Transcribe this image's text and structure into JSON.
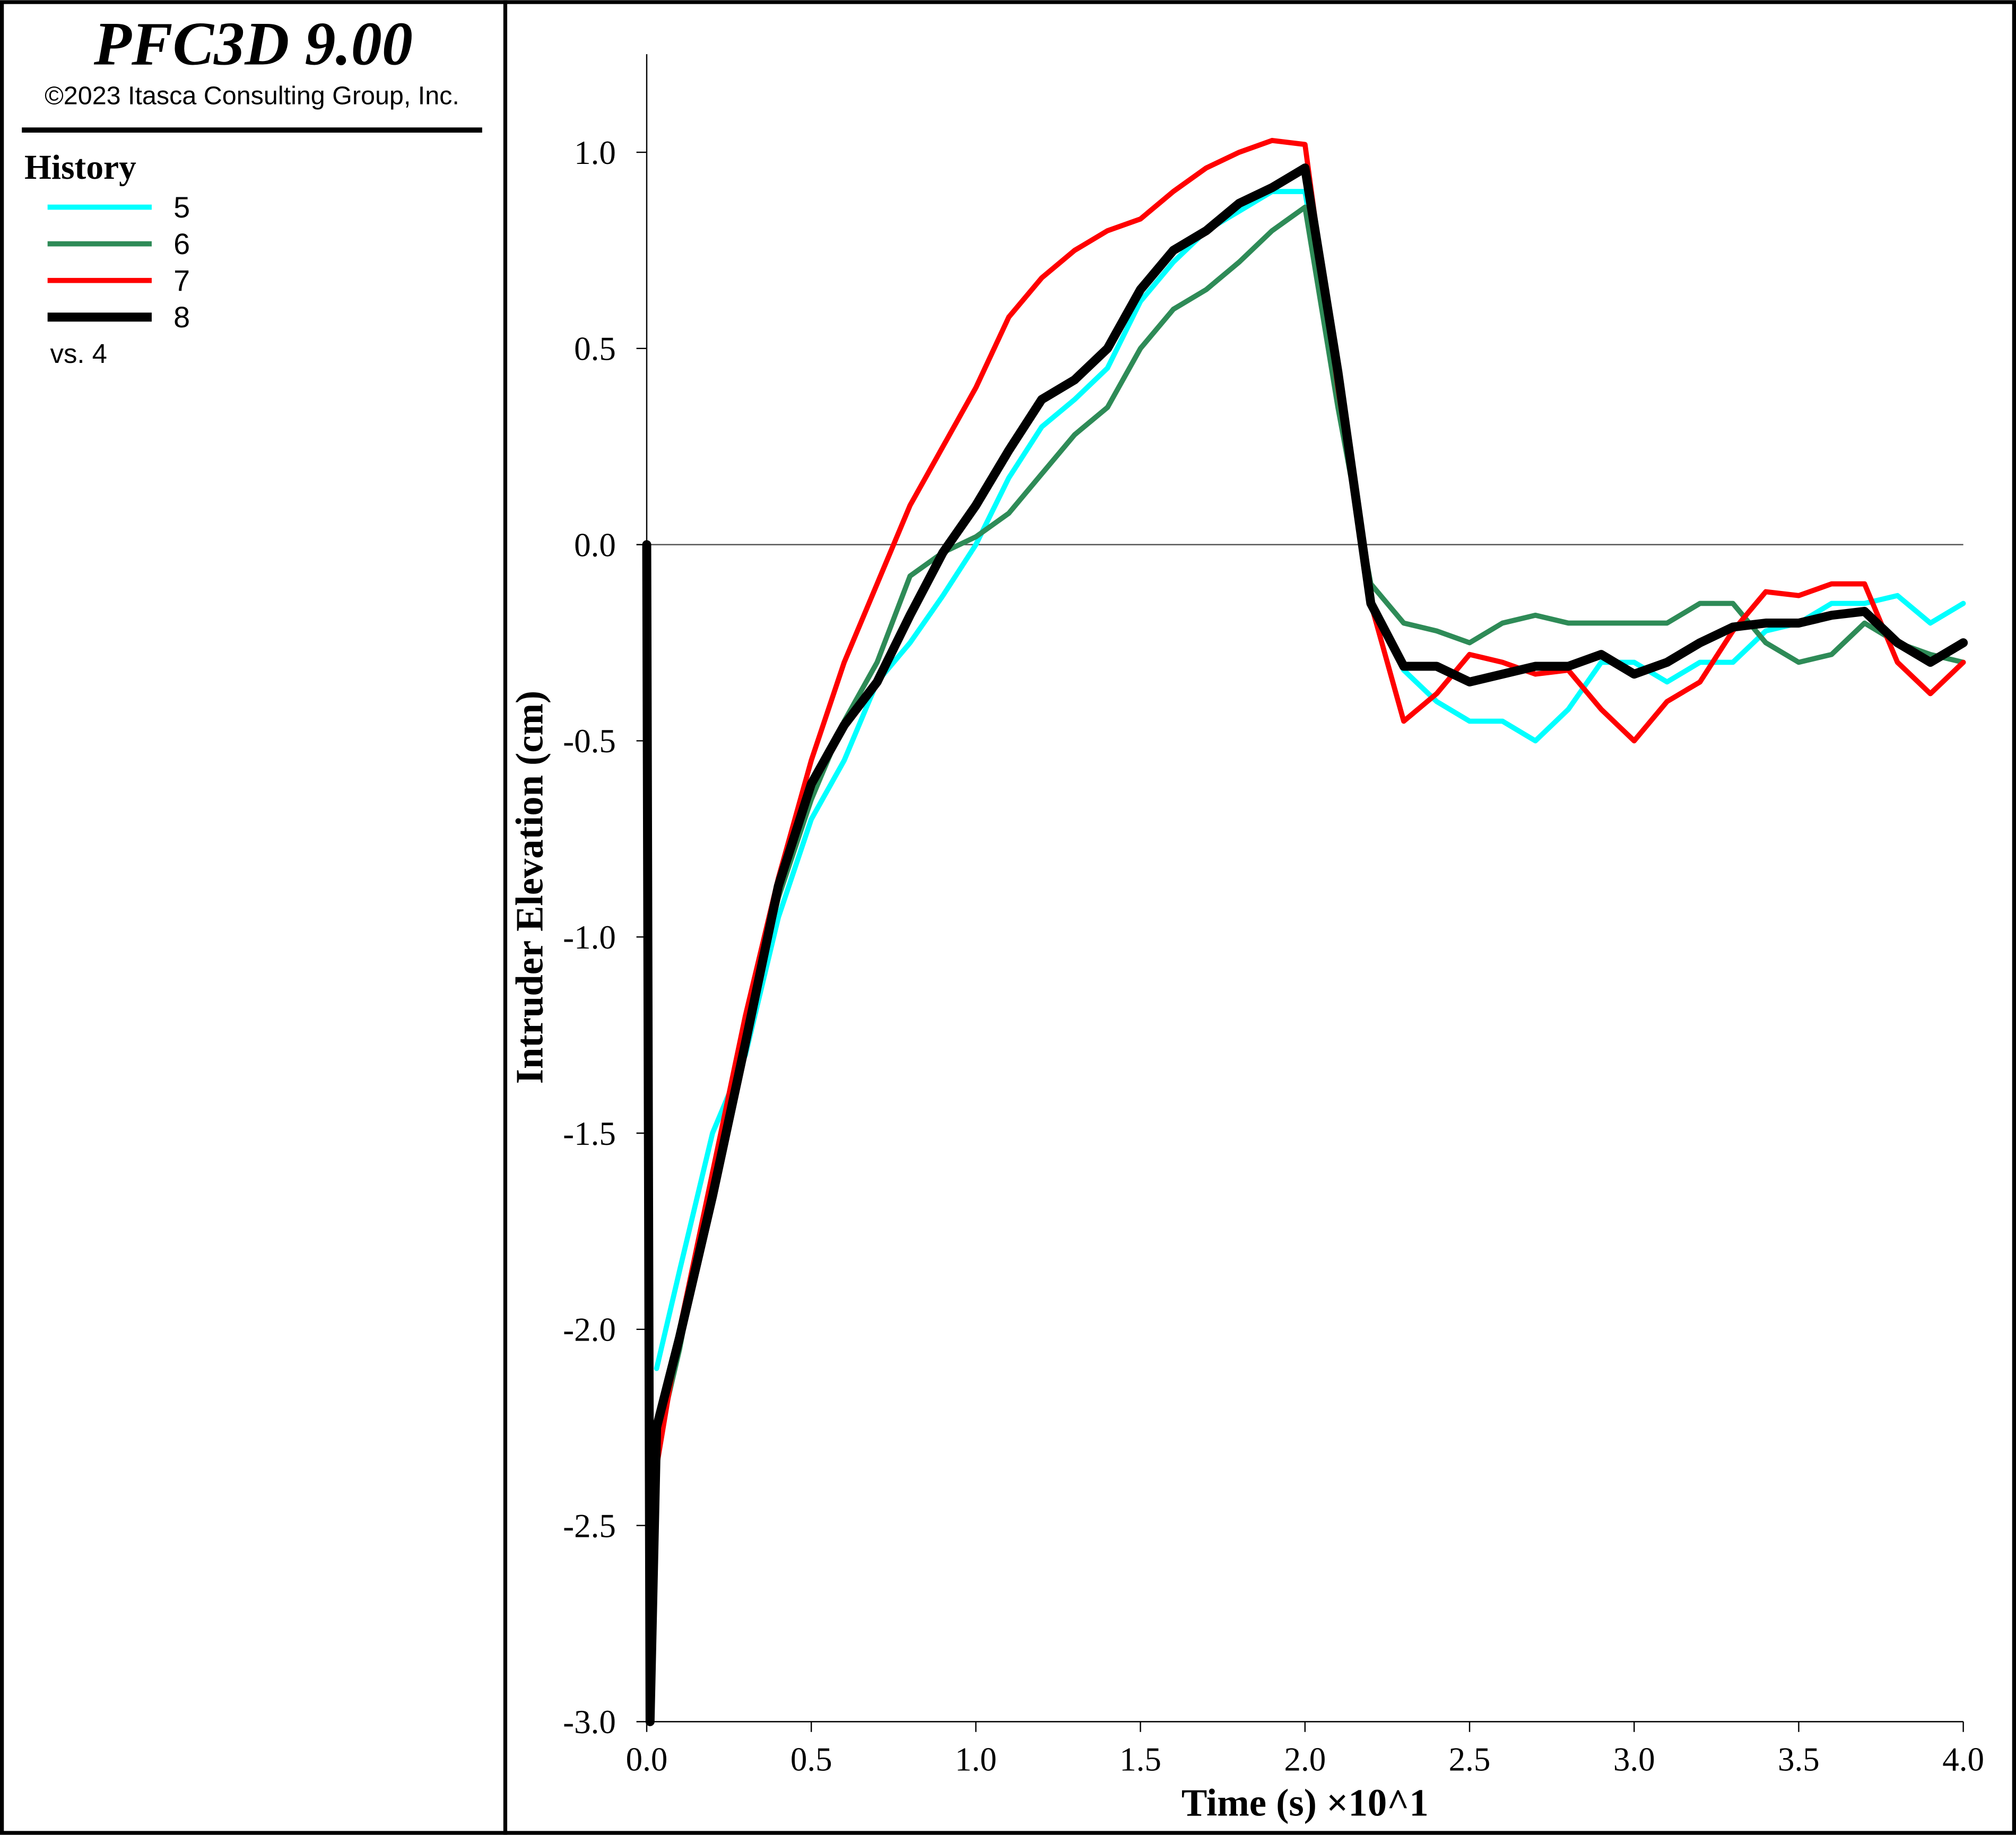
{
  "header": {
    "title": "PFC3D 9.00",
    "copyright": "©2023 Itasca Consulting Group, Inc.",
    "legend_title": "History",
    "versus": "vs. 4"
  },
  "chart_data": {
    "type": "line",
    "x_label": "Time (s) ×10^1",
    "y_label": "Intruder Elevation (cm)",
    "xlim": [
      0,
      4
    ],
    "ylim": [
      -3,
      1.25
    ],
    "xticks": [
      {
        "value": 0,
        "label": "0.0"
      },
      {
        "value": 0.5,
        "label": "0.5"
      },
      {
        "value": 1,
        "label": "1.0"
      },
      {
        "value": 1.5,
        "label": "1.5"
      },
      {
        "value": 2,
        "label": "2.0"
      },
      {
        "value": 2.5,
        "label": "2.5"
      },
      {
        "value": 3,
        "label": "3.0"
      },
      {
        "value": 3.5,
        "label": "3.5"
      },
      {
        "value": 4,
        "label": "4.0"
      }
    ],
    "yticks": [
      {
        "value": -3,
        "label": "-3.0"
      },
      {
        "value": -2.5,
        "label": "-2.5"
      },
      {
        "value": -2,
        "label": "-2.0"
      },
      {
        "value": -1.5,
        "label": "-1.5"
      },
      {
        "value": -1,
        "label": "-1.0"
      },
      {
        "value": -0.5,
        "label": "-0.5"
      },
      {
        "value": 0,
        "label": "0.0"
      },
      {
        "value": 0.5,
        "label": "0.5"
      },
      {
        "value": 1,
        "label": "1.0"
      }
    ],
    "x": [
      0,
      0.01,
      0.03,
      0.1,
      0.2,
      0.3,
      0.4,
      0.5,
      0.6,
      0.7,
      0.8,
      0.9,
      1.0,
      1.1,
      1.2,
      1.3,
      1.4,
      1.5,
      1.6,
      1.7,
      1.8,
      1.9,
      2.0,
      2.1,
      2.2,
      2.3,
      2.4,
      2.5,
      2.6,
      2.7,
      2.8,
      2.9,
      3.0,
      3.1,
      3.2,
      3.3,
      3.4,
      3.5,
      3.6,
      3.7,
      3.8,
      3.9,
      4.0
    ],
    "series": [
      {
        "name": "5",
        "color": "#00ffff",
        "values": [
          null,
          null,
          -2.1,
          -1.85,
          -1.5,
          -1.3,
          -0.95,
          -0.7,
          -0.55,
          -0.35,
          -0.25,
          -0.13,
          0.0,
          0.17,
          0.3,
          0.37,
          0.45,
          0.62,
          0.72,
          0.8,
          0.85,
          0.9,
          0.9,
          0.4,
          -0.15,
          -0.32,
          -0.4,
          -0.45,
          -0.45,
          -0.5,
          -0.42,
          -0.3,
          -0.3,
          -0.35,
          -0.3,
          -0.3,
          -0.22,
          -0.2,
          -0.15,
          -0.15,
          -0.13,
          -0.2,
          -0.15
        ]
      },
      {
        "name": "6",
        "color": "#2e8b57",
        "values": [
          null,
          null,
          -2.3,
          -2.05,
          -1.6,
          -1.25,
          -0.9,
          -0.65,
          -0.45,
          -0.3,
          -0.08,
          -0.02,
          0.02,
          0.08,
          0.18,
          0.28,
          0.35,
          0.5,
          0.6,
          0.65,
          0.72,
          0.8,
          0.86,
          0.35,
          -0.1,
          -0.2,
          -0.22,
          -0.25,
          -0.2,
          -0.18,
          -0.2,
          -0.2,
          -0.2,
          -0.2,
          -0.15,
          -0.15,
          -0.25,
          -0.3,
          -0.28,
          -0.2,
          -0.25,
          -0.28,
          -0.3
        ]
      },
      {
        "name": "7",
        "color": "#ff0000",
        "values": [
          null,
          null,
          -2.35,
          -2.0,
          -1.6,
          -1.2,
          -0.85,
          -0.55,
          -0.3,
          -0.1,
          0.1,
          0.25,
          0.4,
          0.58,
          0.68,
          0.75,
          0.8,
          0.83,
          0.9,
          0.96,
          1.0,
          1.03,
          1.02,
          0.4,
          -0.15,
          -0.45,
          -0.38,
          -0.28,
          -0.3,
          -0.33,
          -0.32,
          -0.42,
          -0.5,
          -0.4,
          -0.35,
          -0.22,
          -0.12,
          -0.13,
          -0.1,
          -0.1,
          -0.3,
          -0.38,
          -0.3
        ]
      },
      {
        "name": "8",
        "color": "#000000",
        "values": [
          0,
          -3.0,
          -2.25,
          -2.02,
          -1.66,
          -1.27,
          -0.87,
          -0.61,
          -0.46,
          -0.35,
          -0.18,
          -0.02,
          0.1,
          0.24,
          0.37,
          0.42,
          0.5,
          0.65,
          0.75,
          0.8,
          0.87,
          0.91,
          0.96,
          0.44,
          -0.15,
          -0.31,
          -0.31,
          -0.35,
          -0.33,
          -0.31,
          -0.31,
          -0.28,
          -0.33,
          -0.3,
          -0.25,
          -0.21,
          -0.2,
          -0.2,
          -0.18,
          -0.17,
          -0.25,
          -0.3,
          -0.25
        ]
      }
    ]
  }
}
